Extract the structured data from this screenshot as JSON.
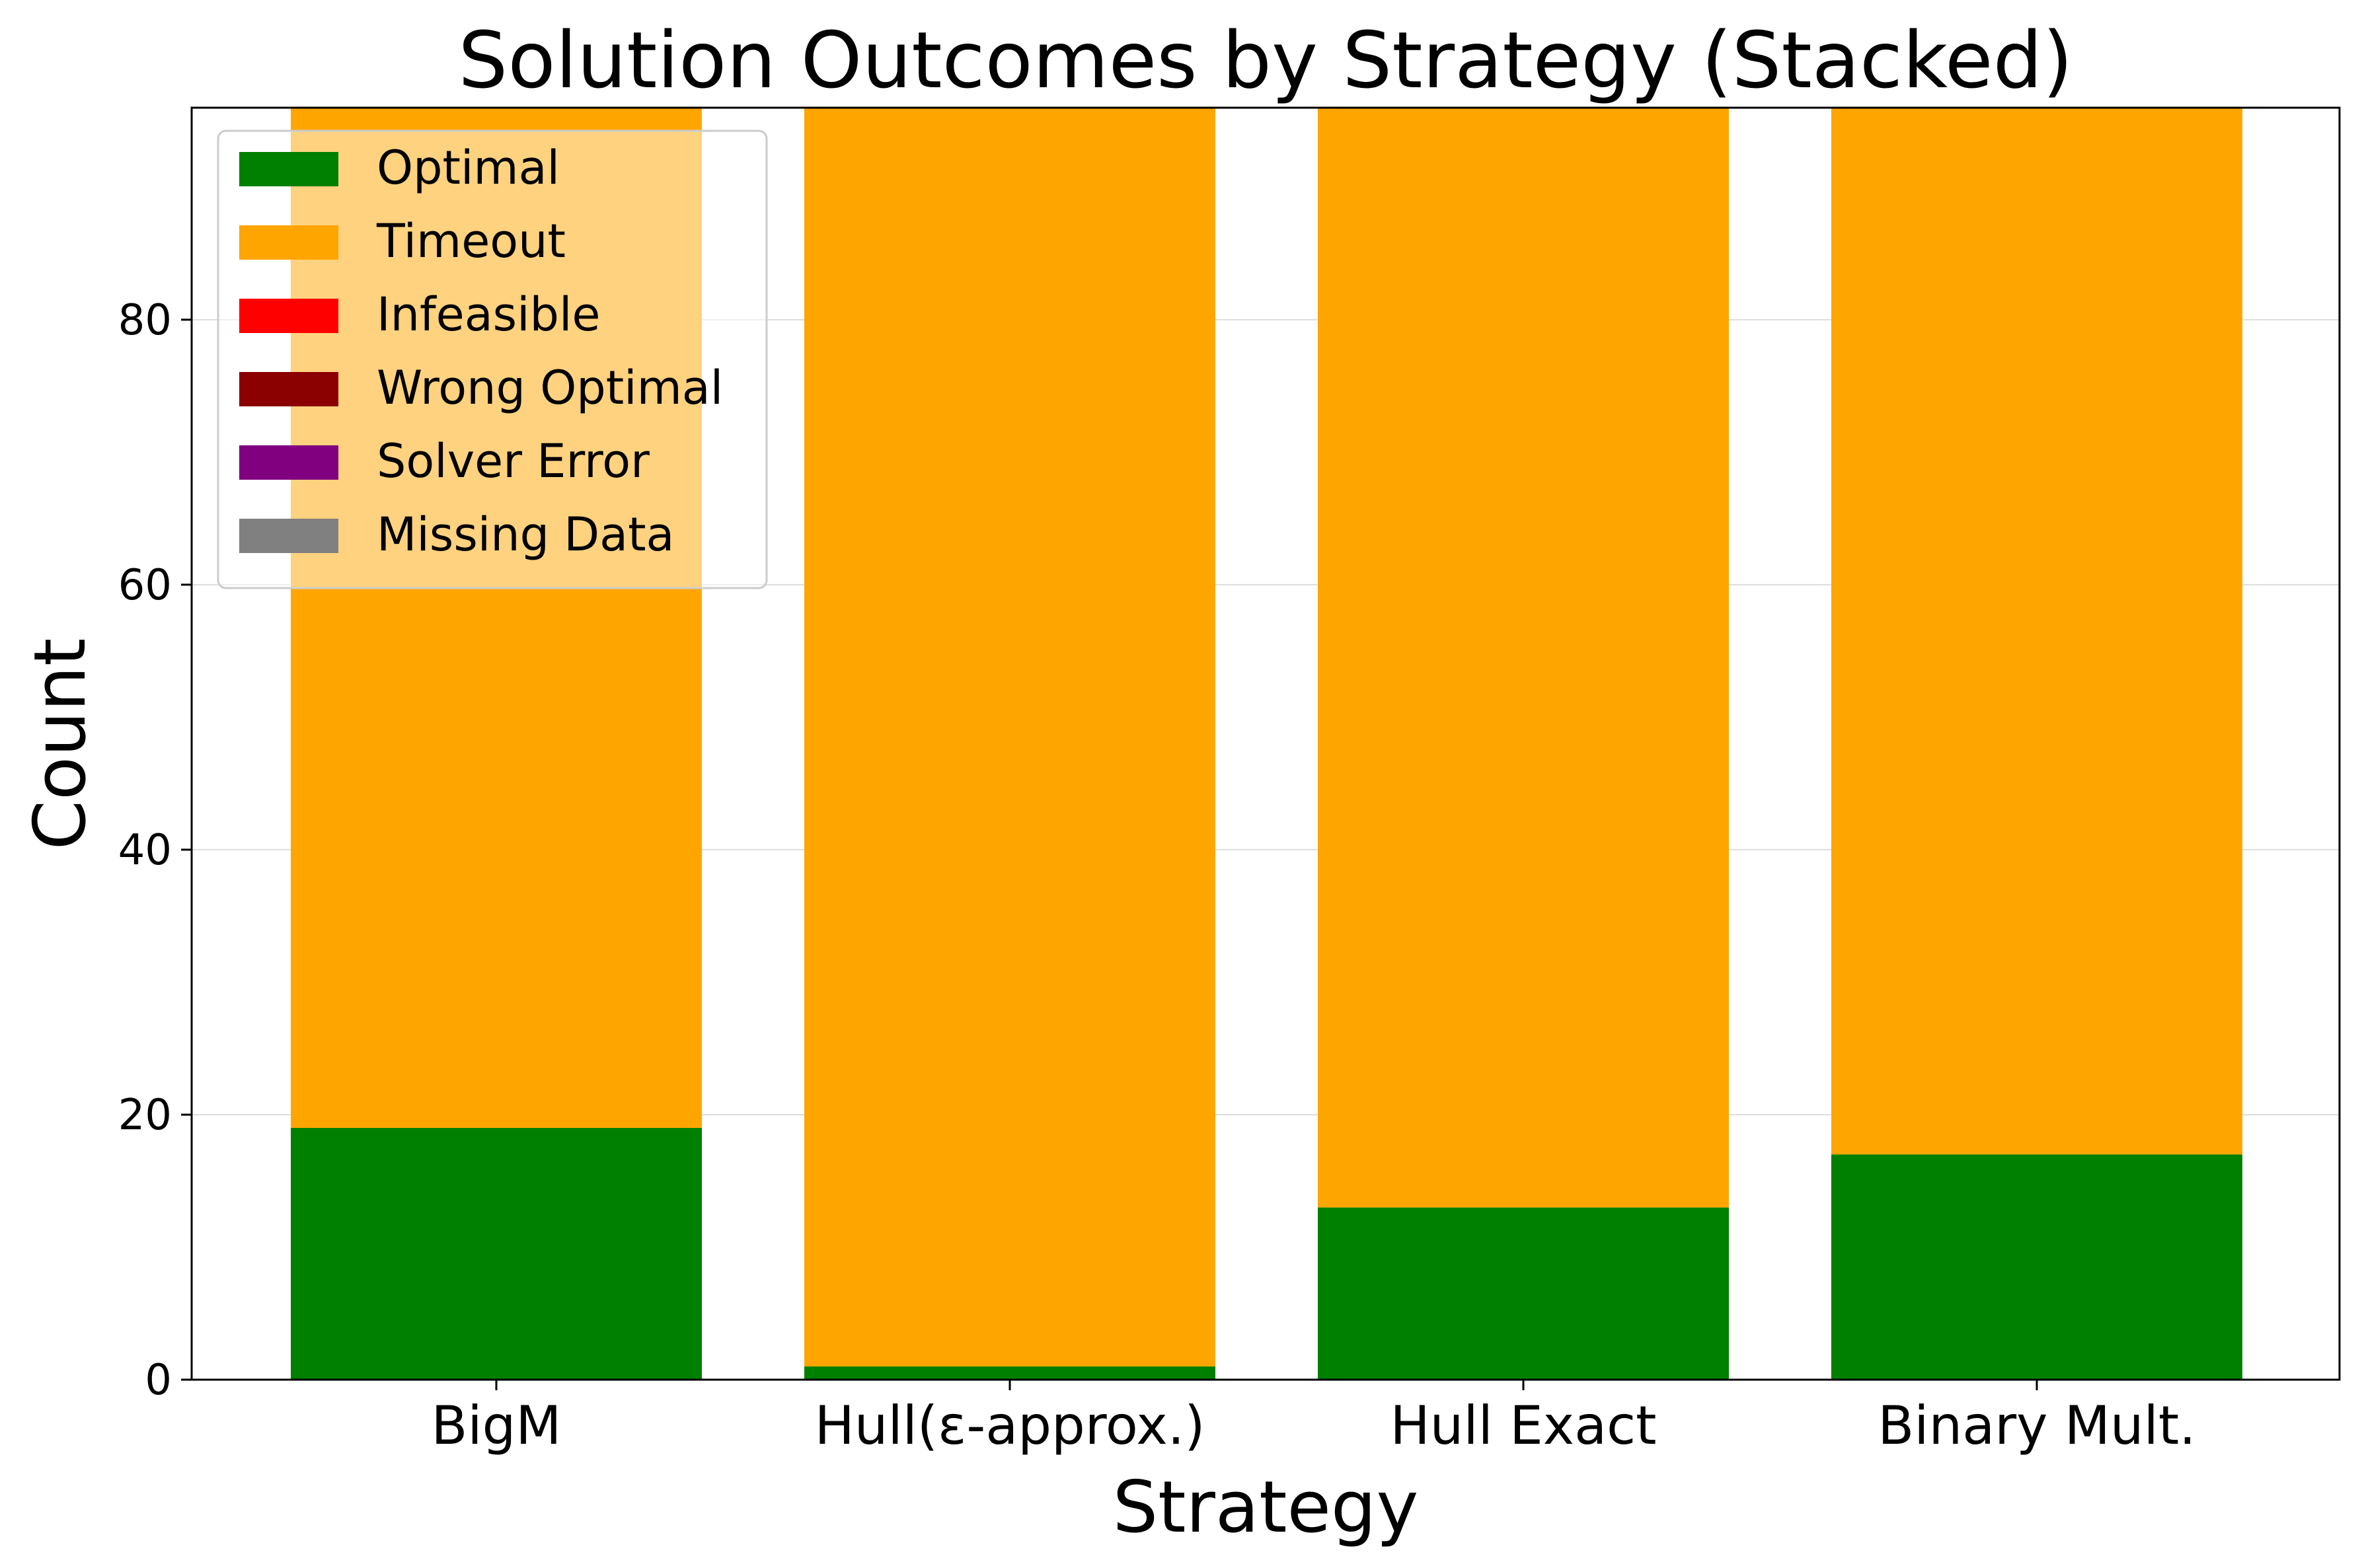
{
  "chart_data": {
    "type": "bar",
    "stacked": true,
    "title": "Solution Outcomes by Strategy (Stacked)",
    "xlabel": "Strategy",
    "ylabel": "Count",
    "categories": [
      "BigM",
      "Hull(ε-approx.)",
      "Hull Exact",
      "Binary Mult."
    ],
    "ylim": [
      0,
      96
    ],
    "yticks": [
      0,
      20,
      40,
      60,
      80
    ],
    "grid": "horizontal",
    "legend_position": "top-left",
    "series": [
      {
        "name": "Optimal",
        "color": "#008000",
        "values": [
          19,
          1,
          13,
          17
        ]
      },
      {
        "name": "Timeout",
        "color": "#FFA500",
        "values": [
          77,
          95,
          83,
          79
        ]
      },
      {
        "name": "Infeasible",
        "color": "#FF0000",
        "values": [
          0,
          0,
          0,
          0
        ]
      },
      {
        "name": "Wrong Optimal",
        "color": "#8B0000",
        "values": [
          0,
          0,
          0,
          0
        ]
      },
      {
        "name": "Solver Error",
        "color": "#800080",
        "values": [
          0,
          0,
          0,
          0
        ]
      },
      {
        "name": "Missing Data",
        "color": "#808080",
        "values": [
          0,
          0,
          0,
          0
        ]
      }
    ]
  }
}
